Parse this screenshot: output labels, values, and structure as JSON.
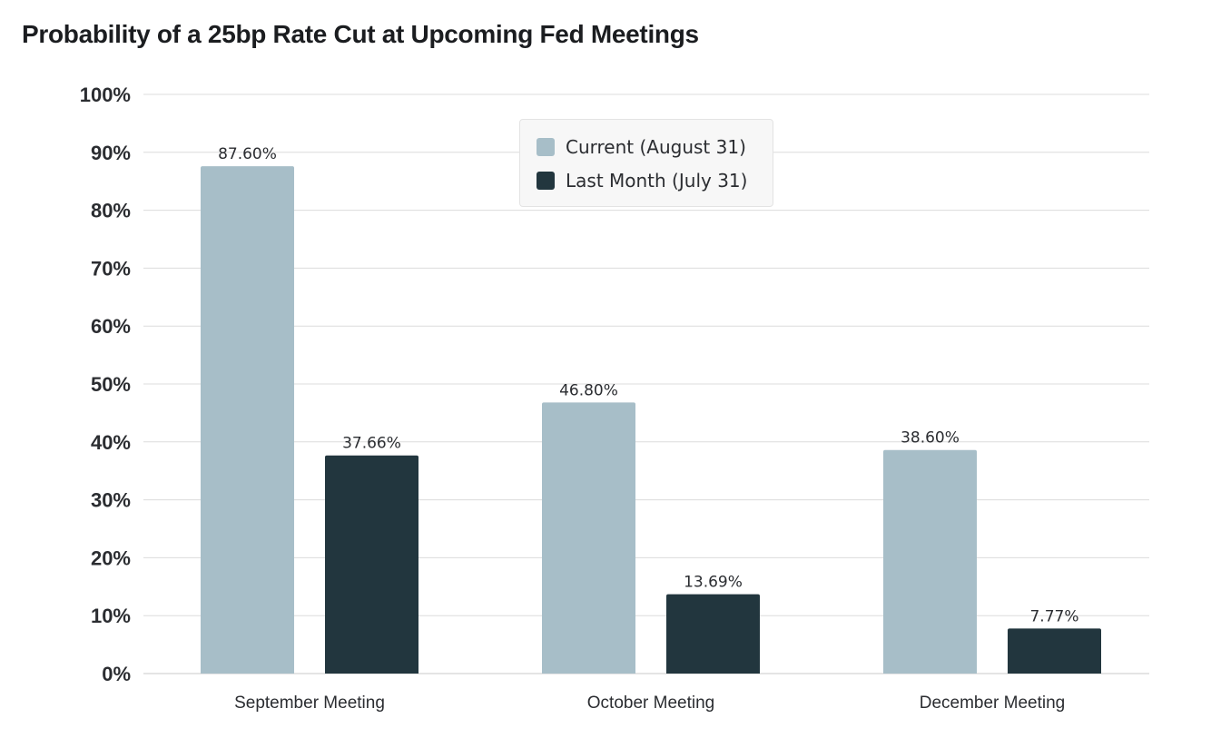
{
  "chart_data": {
    "type": "bar",
    "title": "Probability of a 25bp Rate Cut at Upcoming Fed Meetings",
    "categories": [
      "September Meeting",
      "October Meeting",
      "December Meeting"
    ],
    "series": [
      {
        "name": "Current (August 31)",
        "color": "#a7bec8",
        "values": [
          87.6,
          46.8,
          38.6
        ],
        "labels": [
          "87.60%",
          "46.80%",
          "38.60%"
        ]
      },
      {
        "name": "Last Month (July 31)",
        "color": "#22363e",
        "values": [
          37.66,
          13.69,
          7.77
        ],
        "labels": [
          "37.66%",
          "13.69%",
          "7.77%"
        ]
      }
    ],
    "ylim": [
      0,
      100
    ],
    "yticks": [
      "0%",
      "10%",
      "20%",
      "30%",
      "40%",
      "50%",
      "60%",
      "70%",
      "80%",
      "90%",
      "100%"
    ],
    "xlabel": "",
    "ylabel": "",
    "grid": true,
    "legend_position": "top-center"
  }
}
